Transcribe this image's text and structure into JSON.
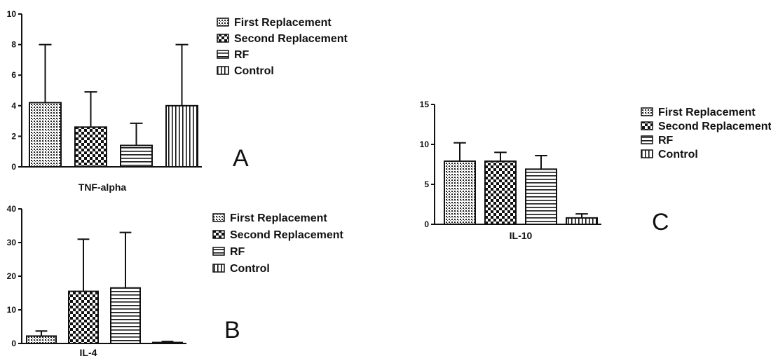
{
  "chart_data": [
    {
      "type": "bar",
      "panel_letter": "A",
      "xlabel": "TNF-alpha",
      "ylabel": "",
      "ylim": [
        0,
        10
      ],
      "yticks": [
        "0",
        "2",
        "4",
        "6",
        "8",
        "10"
      ],
      "categories": [
        "First Replacement",
        "Second Replacement",
        "RF",
        "Control"
      ],
      "values": [
        4.2,
        2.6,
        1.4,
        4.0
      ],
      "error_upper": [
        8.0,
        4.9,
        2.85,
        8.0
      ],
      "legend_position": "top-right"
    },
    {
      "type": "bar",
      "panel_letter": "B",
      "xlabel": "IL-4",
      "ylabel": "",
      "ylim": [
        0,
        40
      ],
      "yticks": [
        "0",
        "10",
        "20",
        "30",
        "40"
      ],
      "categories": [
        "First Replacement",
        "Second Replacement",
        "RF",
        "Control"
      ],
      "values": [
        2.2,
        15.5,
        16.5,
        0.3
      ],
      "error_upper": [
        3.7,
        31.0,
        33.0,
        0.6
      ],
      "legend_position": "top-right"
    },
    {
      "type": "bar",
      "panel_letter": "C",
      "xlabel": "IL-10",
      "ylabel": "",
      "ylim": [
        0,
        15
      ],
      "yticks": [
        "0",
        "5",
        "10",
        "15"
      ],
      "categories": [
        "First Replacement",
        "Second Replacement",
        "RF",
        "Control"
      ],
      "values": [
        7.9,
        7.9,
        6.9,
        0.8
      ],
      "error_upper": [
        10.2,
        9.0,
        8.6,
        1.3
      ],
      "legend_position": "top-right"
    }
  ],
  "series_patterns": [
    "dots",
    "checker",
    "horizontal-lines",
    "vertical-lines"
  ]
}
